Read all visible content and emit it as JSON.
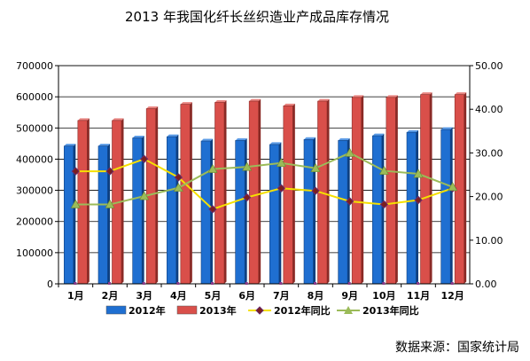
{
  "chart_data": {
    "type": "bar",
    "title": "2013 年我国化纤长丝织造业产成品库存情况",
    "source": "数据来源：国家统计局",
    "categories": [
      "1月",
      "2月",
      "3月",
      "4月",
      "5月",
      "6月",
      "7月",
      "8月",
      "9月",
      "10月",
      "11月",
      "12月"
    ],
    "left_axis": {
      "min": 0,
      "max": 700000,
      "ticks": [
        0,
        100000,
        200000,
        300000,
        400000,
        500000,
        600000,
        700000
      ],
      "tick_labels": [
        "0",
        "100000",
        "200000",
        "300000",
        "400000",
        "500000",
        "600000",
        "700000"
      ]
    },
    "right_axis": {
      "min": 0,
      "max": 50,
      "ticks": [
        0,
        10,
        20,
        30,
        40,
        50
      ],
      "tick_labels": [
        "0.00",
        "10.00",
        "20.00",
        "30.00",
        "40.00",
        "50.00"
      ]
    },
    "series": [
      {
        "name": "2012年",
        "type": "bar",
        "axis": "left",
        "color": "#1f6fd1",
        "values": [
          442000,
          442000,
          468000,
          472000,
          458000,
          460000,
          447000,
          463000,
          460000,
          475000,
          486000,
          495000
        ]
      },
      {
        "name": "2013年",
        "type": "bar",
        "axis": "left",
        "color": "#d94f4a",
        "values": [
          524000,
          524000,
          562000,
          576000,
          582000,
          586000,
          571000,
          586000,
          598000,
          598000,
          607000,
          607000
        ]
      },
      {
        "name": "2012年同比",
        "type": "line",
        "axis": "right",
        "color": "#f5e000",
        "marker": "diamond",
        "marker_color": "#6b2a6b",
        "values": [
          25.8,
          25.8,
          28.6,
          24.4,
          17.1,
          19.8,
          21.9,
          21.3,
          18.9,
          18.2,
          19.2,
          21.9
        ]
      },
      {
        "name": "2013年同比",
        "type": "line",
        "axis": "right",
        "color": "#9bbb59",
        "marker": "triangle",
        "marker_color": "#9bbb59",
        "values": [
          18.2,
          18.2,
          20.1,
          22.0,
          26.3,
          26.8,
          27.7,
          26.5,
          30.0,
          25.9,
          25.2,
          22.2
        ]
      }
    ],
    "grid": true,
    "legend_position": "bottom"
  }
}
